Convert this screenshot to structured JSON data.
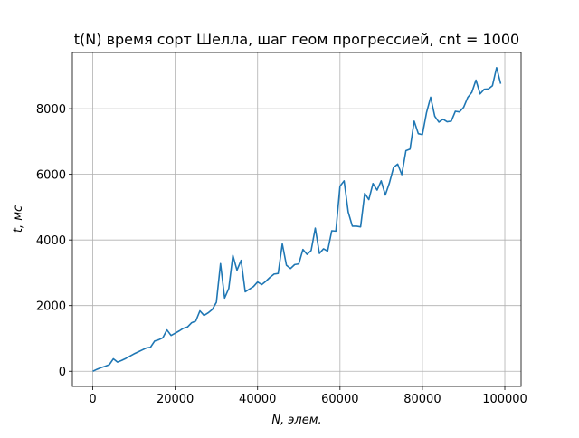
{
  "chart_data": {
    "type": "line",
    "title": "t(N) время сорт Шелла, шаг геом прогрессией, cnt = 1000",
    "xlabel": "N, элем.",
    "ylabel": "t, мс",
    "x": [
      0,
      1000,
      2000,
      3000,
      4000,
      5000,
      6000,
      7000,
      8000,
      9000,
      10000,
      11000,
      12000,
      13000,
      14000,
      15000,
      16000,
      17000,
      18000,
      19000,
      20000,
      21000,
      22000,
      23000,
      24000,
      25000,
      26000,
      27000,
      28000,
      29000,
      30000,
      31000,
      32000,
      33000,
      34000,
      35000,
      36000,
      37000,
      38000,
      39000,
      40000,
      41000,
      42000,
      43000,
      44000,
      45000,
      46000,
      47000,
      48000,
      49000,
      50000,
      51000,
      52000,
      53000,
      54000,
      55000,
      56000,
      57000,
      58000,
      59000,
      60000,
      61000,
      62000,
      63000,
      64000,
      65000,
      66000,
      67000,
      68000,
      69000,
      70000,
      71000,
      72000,
      73000,
      74000,
      75000,
      76000,
      77000,
      78000,
      79000,
      80000,
      81000,
      82000,
      83000,
      84000,
      85000,
      86000,
      87000,
      88000,
      89000,
      90000,
      91000,
      92000,
      93000,
      94000,
      95000,
      96000,
      97000,
      98000,
      99000
    ],
    "series": [
      {
        "name": "t(N)",
        "color": "#1f77b4",
        "values": [
          0,
          60,
          110,
          150,
          200,
          380,
          280,
          330,
          390,
          460,
          530,
          590,
          650,
          710,
          730,
          920,
          960,
          1020,
          1260,
          1090,
          1160,
          1230,
          1310,
          1350,
          1480,
          1530,
          1840,
          1700,
          1780,
          1880,
          2100,
          3280,
          2230,
          2520,
          3530,
          3080,
          3380,
          2420,
          2500,
          2580,
          2720,
          2640,
          2740,
          2860,
          2960,
          2980,
          3880,
          3230,
          3130,
          3250,
          3270,
          3710,
          3560,
          3680,
          4360,
          3590,
          3730,
          3660,
          4280,
          4270,
          5640,
          5800,
          4850,
          4420,
          4420,
          4400,
          5420,
          5230,
          5720,
          5520,
          5800,
          5370,
          5740,
          6210,
          6310,
          5990,
          6720,
          6770,
          7620,
          7240,
          7210,
          7880,
          8350,
          7770,
          7590,
          7680,
          7600,
          7620,
          7920,
          7900,
          8040,
          8340,
          8500,
          8870,
          8450,
          8590,
          8600,
          8700,
          9250,
          8760
        ]
      }
    ],
    "xlim": [
      -4950,
      103950
    ],
    "ylim": [
      -462,
      9712
    ],
    "xticks": [
      0,
      20000,
      40000,
      60000,
      80000,
      100000
    ],
    "yticks": [
      0,
      2000,
      4000,
      6000,
      8000
    ],
    "grid": true
  }
}
